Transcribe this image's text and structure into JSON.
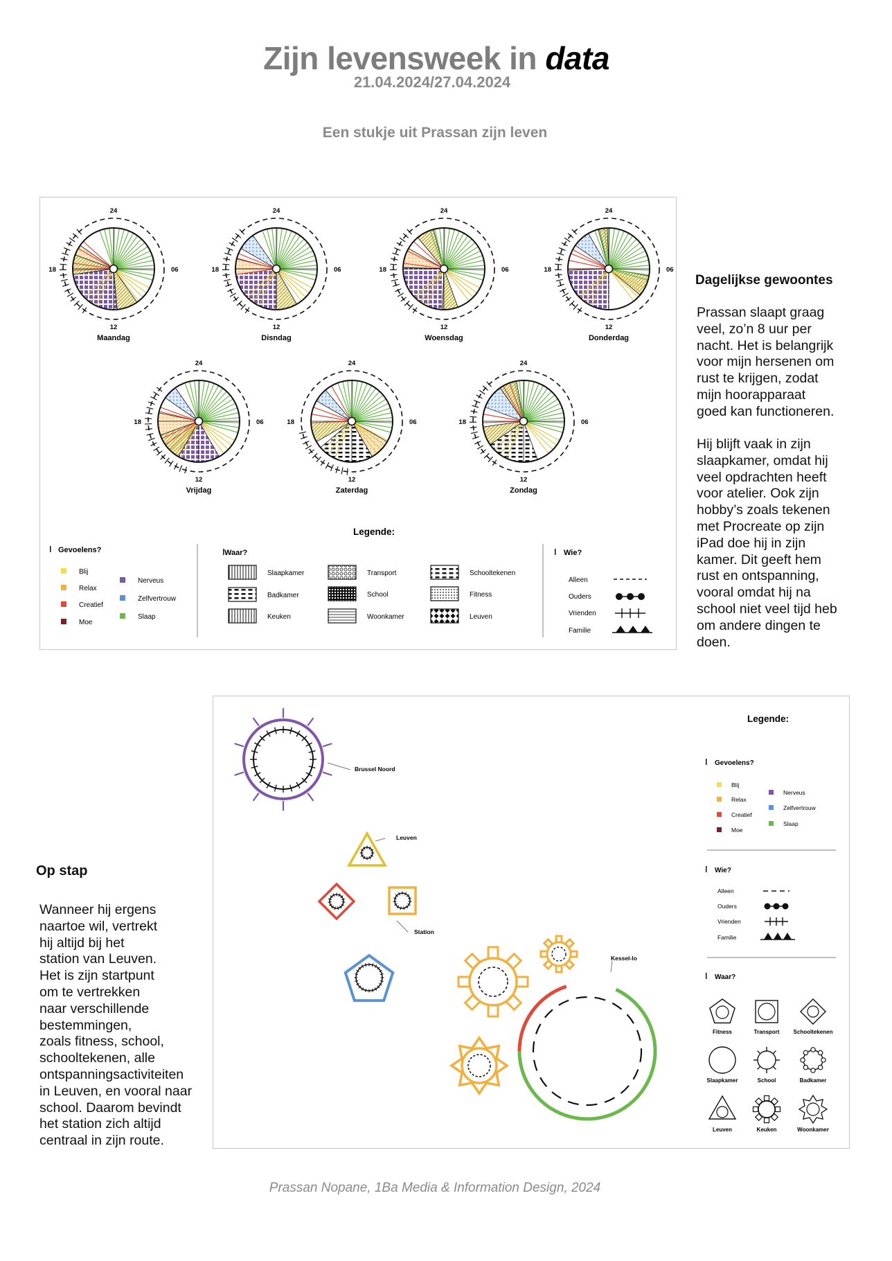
{
  "header": {
    "title_main": "Zijn levensweek in",
    "title_italic": "data",
    "dates": "21.04.2024/27.04.2024",
    "subtitle": "Een stukje uit Prassan zijn leven"
  },
  "clock_labels": {
    "top": "24",
    "right": "06",
    "bottom": "12",
    "left": "18"
  },
  "days": [
    {
      "name": "Maandag"
    },
    {
      "name": "Disndag"
    },
    {
      "name": "Woensdag"
    },
    {
      "name": "Donderdag"
    },
    {
      "name": "Vrijdag"
    },
    {
      "name": "Zaterdag"
    },
    {
      "name": "Zondag"
    }
  ],
  "legend1": {
    "title": "Legende:",
    "feelings_title": "Gevoelens?",
    "feelings": [
      {
        "label": "Blij",
        "color": "#f2e047"
      },
      {
        "label": "Relax",
        "color": "#f0b13f"
      },
      {
        "label": "Creatief",
        "color": "#e04a3a"
      },
      {
        "label": "Moe",
        "color": "#7b2024"
      },
      {
        "label": "Nerveus",
        "color": "#7e57a8"
      },
      {
        "label": "Zelfvertrouw",
        "color": "#5b93d0"
      },
      {
        "label": "Slaap",
        "color": "#6cb84d"
      }
    ],
    "places_title": "Waar?",
    "places": [
      "Slaapkamer",
      "Badkamer",
      "Keuken",
      "Transport",
      "School",
      "Woonkamer",
      "Schooltekenen",
      "Fitness",
      "Leuven"
    ],
    "who_title": "Wie?",
    "who": [
      "Alleen",
      "Ouders",
      "Vrienden",
      "Familie"
    ]
  },
  "section1": {
    "heading": "Dagelijkse gewoontes",
    "paragraph1": [
      "Prassan slaapt graag",
      "veel, zo’n 8 uur per",
      "nacht. Het is belangrijk",
      "voor mijn hersenen om",
      "rust te krijgen, zodat",
      "mijn hoorapparaat",
      "goed kan functioneren."
    ],
    "paragraph2": [
      "Hij blijft vaak in zijn",
      "slaapkamer, omdat hij",
      "veel opdrachten heeft",
      "voor atelier. Ook zijn",
      "hobby’s zoals tekenen",
      "met Procreate op zijn",
      "iPad doe hij in zijn",
      "kamer. Dit geeft hem",
      "rust en ontspanning,",
      "vooral omdat hij na",
      "school niet veel tijd heb",
      "om andere dingen te",
      "doen."
    ]
  },
  "section2": {
    "heading": "Op stap",
    "paragraph": [
      "Wanneer hij ergens",
      "naartoe wil, vertrekt",
      "hij altijd bij het",
      "station van Leuven.",
      "Het is zijn startpunt",
      "om te vertrekken",
      "naar verschillende",
      "bestemmingen,",
      "zoals fitness, school,",
      "schooltekenen, alle",
      "ontspanningsactiviteiten",
      "in Leuven, en vooral naar",
      "school. Daarom bevindt",
      "het station zich altijd",
      "centraal in zijn route."
    ]
  },
  "map": {
    "labels": [
      "Brussel Noord",
      "Leuven",
      "Station",
      "Kessel-lo"
    ]
  },
  "legend2": {
    "title": "Legende:",
    "feelings_title": "Gevoelens?",
    "who_title": "Wie?",
    "places_title": "Waar?",
    "places": [
      "Fitness",
      "Transport",
      "Schooltekenen",
      "Slaapkamer",
      "School",
      "Badkamer",
      "Leuven",
      "Keuken",
      "Woonkamer"
    ]
  },
  "footer": "Prassan Nopane, 1Ba Media & Information Design, 2024"
}
